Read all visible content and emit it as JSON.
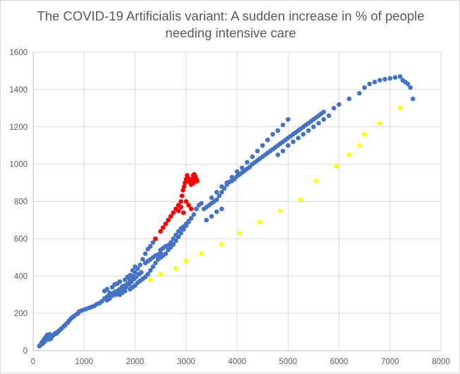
{
  "chart_data": {
    "type": "scatter",
    "title_lines": [
      "The COVID-19 Artificialis variant: A sudden increase in % of people",
      "needing intensive care"
    ],
    "xlabel": "",
    "ylabel": "",
    "xlim": [
      0,
      8000
    ],
    "ylim": [
      0,
      1600
    ],
    "x_ticks": [
      0,
      1000,
      2000,
      3000,
      4000,
      5000,
      6000,
      7000,
      8000
    ],
    "y_ticks": [
      0,
      200,
      400,
      600,
      800,
      1000,
      1200,
      1400,
      1600
    ],
    "grid": true,
    "legend": "none",
    "series": [
      {
        "color": "#4472c4",
        "points": [
          [
            120,
            25
          ],
          [
            140,
            30
          ],
          [
            160,
            35
          ],
          [
            170,
            45
          ],
          [
            180,
            38
          ],
          [
            190,
            50
          ],
          [
            200,
            42
          ],
          [
            210,
            55
          ],
          [
            215,
            60
          ],
          [
            220,
            48
          ],
          [
            230,
            65
          ],
          [
            235,
            52
          ],
          [
            240,
            70
          ],
          [
            250,
            58
          ],
          [
            255,
            75
          ],
          [
            260,
            62
          ],
          [
            270,
            80
          ],
          [
            275,
            68
          ],
          [
            280,
            85
          ],
          [
            290,
            72
          ],
          [
            300,
            78
          ],
          [
            310,
            60
          ],
          [
            320,
            88
          ],
          [
            330,
            70
          ],
          [
            340,
            82
          ],
          [
            350,
            65
          ],
          [
            360,
            75
          ],
          [
            380,
            80
          ],
          [
            400,
            85
          ],
          [
            420,
            90
          ],
          [
            440,
            95
          ],
          [
            460,
            92
          ],
          [
            480,
            100
          ],
          [
            500,
            105
          ],
          [
            520,
            110
          ],
          [
            540,
            115
          ],
          [
            560,
            120
          ],
          [
            600,
            130
          ],
          [
            620,
            135
          ],
          [
            650,
            145
          ],
          [
            680,
            150
          ],
          [
            700,
            160
          ],
          [
            720,
            165
          ],
          [
            750,
            175
          ],
          [
            780,
            180
          ],
          [
            800,
            185
          ],
          [
            850,
            195
          ],
          [
            880,
            200
          ],
          [
            900,
            210
          ],
          [
            950,
            215
          ],
          [
            1000,
            220
          ],
          [
            1050,
            225
          ],
          [
            1100,
            230
          ],
          [
            1150,
            235
          ],
          [
            1200,
            240
          ],
          [
            1250,
            250
          ],
          [
            1300,
            255
          ],
          [
            1350,
            265
          ],
          [
            1400,
            280
          ],
          [
            1450,
            290
          ],
          [
            1500,
            300
          ],
          [
            1550,
            305
          ],
          [
            1600,
            315
          ],
          [
            1650,
            320
          ],
          [
            1700,
            330
          ],
          [
            1750,
            340
          ],
          [
            1800,
            350
          ],
          [
            1850,
            360
          ],
          [
            1900,
            380
          ],
          [
            1950,
            400
          ],
          [
            2000,
            420
          ],
          [
            2050,
            440
          ],
          [
            2100,
            460
          ],
          [
            2150,
            490
          ],
          [
            2200,
            520
          ],
          [
            2250,
            545
          ],
          [
            2300,
            560
          ],
          [
            2350,
            580
          ],
          [
            2400,
            600
          ],
          [
            1400,
            320
          ],
          [
            1450,
            330
          ],
          [
            1500,
            310
          ],
          [
            1550,
            340
          ],
          [
            1600,
            355
          ],
          [
            1650,
            360
          ],
          [
            1700,
            370
          ],
          [
            1750,
            345
          ],
          [
            1800,
            380
          ],
          [
            1850,
            395
          ],
          [
            1900,
            405
          ],
          [
            1950,
            430
          ],
          [
            2000,
            450
          ],
          [
            1450,
            270
          ],
          [
            1500,
            280
          ],
          [
            1550,
            295
          ],
          [
            1620,
            300
          ],
          [
            1680,
            310
          ],
          [
            1720,
            320
          ],
          [
            1780,
            335
          ],
          [
            1820,
            340
          ],
          [
            1880,
            355
          ],
          [
            1930,
            370
          ],
          [
            1980,
            385
          ],
          [
            2020,
            395
          ],
          [
            2080,
            410
          ],
          [
            2120,
            420
          ],
          [
            1700,
            300
          ],
          [
            1750,
            310
          ],
          [
            1800,
            320
          ],
          [
            1900,
            330
          ],
          [
            1950,
            340
          ],
          [
            2000,
            350
          ],
          [
            2050,
            365
          ],
          [
            2100,
            375
          ],
          [
            2150,
            385
          ],
          [
            2200,
            395
          ],
          [
            2250,
            410
          ],
          [
            2300,
            430
          ],
          [
            2350,
            450
          ],
          [
            2400,
            470
          ],
          [
            2450,
            490
          ],
          [
            2500,
            500
          ],
          [
            2550,
            510
          ],
          [
            2600,
            520
          ],
          [
            2650,
            540
          ],
          [
            2700,
            555
          ],
          [
            2750,
            570
          ],
          [
            2800,
            590
          ],
          [
            2850,
            610
          ],
          [
            2900,
            630
          ],
          [
            2950,
            650
          ],
          [
            3000,
            670
          ],
          [
            3050,
            690
          ],
          [
            3100,
            710
          ],
          [
            3150,
            730
          ],
          [
            3200,
            760
          ],
          [
            3250,
            780
          ],
          [
            3300,
            790
          ],
          [
            2500,
            540
          ],
          [
            2550,
            550
          ],
          [
            2600,
            560
          ],
          [
            2650,
            565
          ],
          [
            2700,
            580
          ],
          [
            2750,
            600
          ],
          [
            2800,
            620
          ],
          [
            2850,
            640
          ],
          [
            2900,
            655
          ],
          [
            2950,
            665
          ],
          [
            3000,
            680
          ],
          [
            3050,
            695
          ],
          [
            2200,
            470
          ],
          [
            2250,
            480
          ],
          [
            2300,
            490
          ],
          [
            2350,
            500
          ],
          [
            2400,
            510
          ],
          [
            2450,
            515
          ],
          [
            2500,
            525
          ],
          [
            3350,
            760
          ],
          [
            3400,
            770
          ],
          [
            3450,
            780
          ],
          [
            3500,
            790
          ],
          [
            3550,
            800
          ],
          [
            3600,
            810
          ],
          [
            3650,
            830
          ],
          [
            3700,
            850
          ],
          [
            3750,
            870
          ],
          [
            3800,
            890
          ],
          [
            3850,
            905
          ],
          [
            3900,
            910
          ],
          [
            3950,
            920
          ],
          [
            4000,
            935
          ],
          [
            4050,
            945
          ],
          [
            4100,
            955
          ],
          [
            4150,
            965
          ],
          [
            4200,
            975
          ],
          [
            4250,
            985
          ],
          [
            4300,
            1000
          ],
          [
            4350,
            1010
          ],
          [
            4400,
            1020
          ],
          [
            4450,
            1030
          ],
          [
            4500,
            1040
          ],
          [
            4550,
            1050
          ],
          [
            4600,
            1060
          ],
          [
            4650,
            1070
          ],
          [
            4700,
            1080
          ],
          [
            4750,
            1090
          ],
          [
            4800,
            1100
          ],
          [
            4850,
            1110
          ],
          [
            4900,
            1120
          ],
          [
            4950,
            1130
          ],
          [
            5000,
            1140
          ],
          [
            5050,
            1150
          ],
          [
            5100,
            1160
          ],
          [
            5150,
            1170
          ],
          [
            5200,
            1180
          ],
          [
            5250,
            1190
          ],
          [
            5300,
            1200
          ],
          [
            5350,
            1210
          ],
          [
            5400,
            1220
          ],
          [
            5450,
            1230
          ],
          [
            5500,
            1240
          ],
          [
            5550,
            1250
          ],
          [
            5600,
            1260
          ],
          [
            5650,
            1270
          ],
          [
            5700,
            1280
          ],
          [
            3500,
            820
          ],
          [
            3600,
            850
          ],
          [
            3700,
            880
          ],
          [
            3800,
            900
          ],
          [
            3900,
            930
          ],
          [
            4000,
            960
          ],
          [
            4100,
            980
          ],
          [
            4200,
            1010
          ],
          [
            4300,
            1040
          ],
          [
            4400,
            1070
          ],
          [
            4500,
            1100
          ],
          [
            4600,
            1130
          ],
          [
            4700,
            1160
          ],
          [
            4800,
            1180
          ],
          [
            4900,
            1210
          ],
          [
            5000,
            1240
          ],
          [
            3400,
            700
          ],
          [
            3500,
            720
          ],
          [
            3600,
            745
          ],
          [
            3700,
            760
          ],
          [
            4800,
            1050
          ],
          [
            4900,
            1070
          ],
          [
            5000,
            1100
          ],
          [
            5100,
            1120
          ],
          [
            5200,
            1140
          ],
          [
            5300,
            1160
          ],
          [
            5400,
            1180
          ],
          [
            5500,
            1200
          ],
          [
            5600,
            1220
          ],
          [
            5700,
            1240
          ],
          [
            5800,
            1260
          ],
          [
            5900,
            1300
          ],
          [
            6000,
            1320
          ],
          [
            6200,
            1350
          ],
          [
            6400,
            1380
          ],
          [
            6500,
            1410
          ],
          [
            6600,
            1430
          ],
          [
            6700,
            1440
          ],
          [
            6800,
            1450
          ],
          [
            6900,
            1455
          ],
          [
            7000,
            1460
          ],
          [
            7100,
            1465
          ],
          [
            7200,
            1470
          ],
          [
            7250,
            1450
          ],
          [
            7300,
            1440
          ],
          [
            7350,
            1430
          ],
          [
            7400,
            1410
          ],
          [
            7450,
            1350
          ]
        ]
      },
      {
        "color": "#ff0000",
        "points": [
          [
            2400,
            600
          ],
          [
            2500,
            640
          ],
          [
            2550,
            660
          ],
          [
            2600,
            680
          ],
          [
            2650,
            700
          ],
          [
            2700,
            720
          ],
          [
            2750,
            740
          ],
          [
            2800,
            760
          ],
          [
            2850,
            780
          ],
          [
            2900,
            800
          ],
          [
            2920,
            830
          ],
          [
            2940,
            860
          ],
          [
            2960,
            880
          ],
          [
            2980,
            900
          ],
          [
            3000,
            920
          ],
          [
            3020,
            940
          ],
          [
            3040,
            925
          ],
          [
            3060,
            910
          ],
          [
            3080,
            900
          ],
          [
            3100,
            890
          ],
          [
            3120,
            920
          ],
          [
            3140,
            940
          ],
          [
            3160,
            945
          ],
          [
            3180,
            935
          ],
          [
            3200,
            920
          ],
          [
            3220,
            910
          ],
          [
            3000,
            800
          ],
          [
            3050,
            780
          ],
          [
            3100,
            760
          ],
          [
            2950,
            740
          ],
          [
            2900,
            770
          ],
          [
            2850,
            750
          ],
          [
            3150,
            900
          ]
        ]
      },
      {
        "color": "#ffff00",
        "points": [
          [
            2300,
            380
          ],
          [
            2500,
            410
          ],
          [
            2800,
            440
          ],
          [
            3000,
            480
          ],
          [
            3300,
            520
          ],
          [
            3700,
            570
          ],
          [
            4050,
            630
          ],
          [
            4450,
            690
          ],
          [
            4850,
            750
          ],
          [
            5250,
            810
          ],
          [
            5550,
            910
          ],
          [
            5950,
            990
          ],
          [
            6200,
            1050
          ],
          [
            6400,
            1100
          ],
          [
            6500,
            1160
          ],
          [
            6800,
            1220
          ],
          [
            7200,
            1300
          ]
        ]
      }
    ]
  }
}
